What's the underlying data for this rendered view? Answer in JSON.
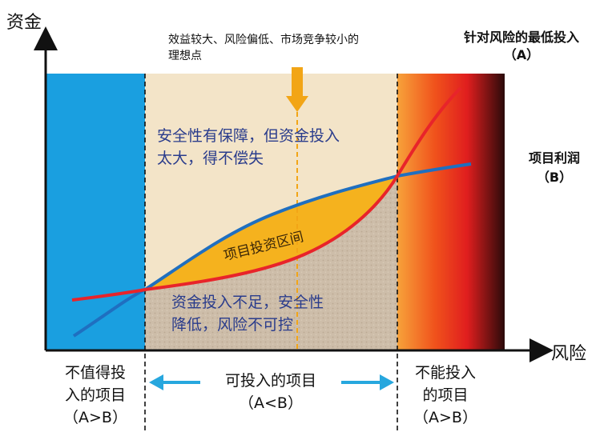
{
  "axes": {
    "y_label": "资金",
    "x_label": "风险"
  },
  "top_note": {
    "line1": "效益较大、风险偏低、市场竞争较小的",
    "line2": "理想点"
  },
  "curve_labels": {
    "a_line1": "针对风险的最低投入",
    "a_line2": "（A）",
    "b_line1": "项目利润",
    "b_line2": "（B）"
  },
  "zone_texts": {
    "upper_line1": "安全性有保障，但资金投入",
    "upper_line2": "太大，得不偿失",
    "band": "项目投资区间",
    "lower_line1": "资金投入不足，安全性",
    "lower_line2": "降低，风险不可控"
  },
  "bottom": {
    "left_line1": "不值得投",
    "left_line2": "入的项目",
    "left_line3": "（A>B）",
    "middle_line1": "可投入的项目",
    "middle_line2": "（A<B）",
    "right_line1": "不能投入",
    "right_line2": "的项目",
    "right_line3": "（A>B）"
  },
  "colors": {
    "left_zone": "#1a9fe0",
    "middle_zone": "#f3e4c8",
    "band_fill": "#f5b21e",
    "curve_a": "#e8242a",
    "curve_b": "#1f6fc0",
    "arrow_cyan": "#27a7de",
    "marker_orange": "#f2a516"
  }
}
